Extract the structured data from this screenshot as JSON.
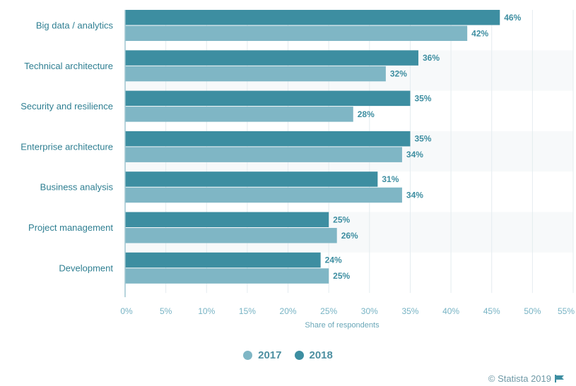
{
  "chart_data": {
    "type": "bar",
    "orientation": "horizontal",
    "categories": [
      "Big data / analytics",
      "Technical architecture",
      "Security and resilience",
      "Enterprise architecture",
      "Business analysis",
      "Project management",
      "Development"
    ],
    "series": [
      {
        "name": "2018",
        "values": [
          46,
          36,
          35,
          35,
          31,
          25,
          24
        ],
        "labels": [
          "46%",
          "36%",
          "35%",
          "35%",
          "31%",
          "25%",
          "24%"
        ]
      },
      {
        "name": "2017",
        "values": [
          42,
          32,
          28,
          34,
          34,
          26,
          25
        ],
        "labels": [
          "42%",
          "32%",
          "28%",
          "34%",
          "34%",
          "26%",
          "25%"
        ]
      }
    ],
    "x_ticks": [
      "0%",
      "5%",
      "10%",
      "15%",
      "20%",
      "25%",
      "30%",
      "35%",
      "40%",
      "45%",
      "50%",
      "55%"
    ],
    "xlim": [
      0,
      55
    ],
    "xlabel": "Share of respondents",
    "grid": true,
    "legend_position": "bottom-center",
    "colors": {
      "2018": "#3d8ea1",
      "2017": "#7fb6c5"
    }
  },
  "legend": {
    "items": [
      {
        "label": "2017",
        "color": "#7fb6c5"
      },
      {
        "label": "2018",
        "color": "#3d8ea1"
      }
    ]
  },
  "credit": {
    "text": "© Statista 2019",
    "icon": "flag-icon"
  }
}
